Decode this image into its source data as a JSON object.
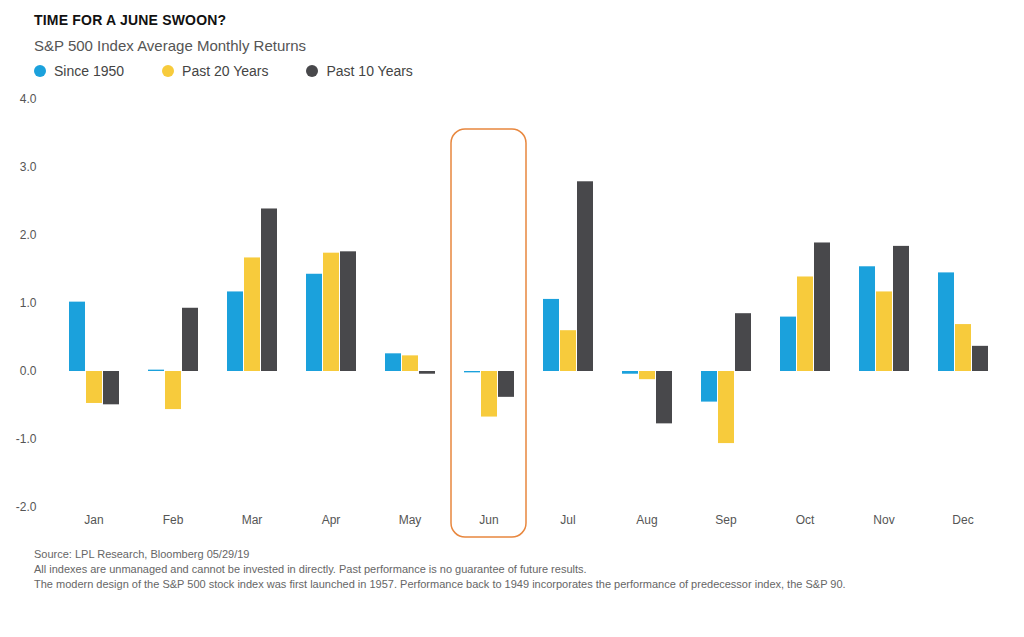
{
  "chart_data": {
    "type": "bar",
    "title": "TIME FOR A JUNE SWOON?",
    "subtitle": "S&P 500 Index Average Monthly Returns",
    "categories": [
      "Jan",
      "Feb",
      "Mar",
      "Apr",
      "May",
      "Jun",
      "Jul",
      "Aug",
      "Sep",
      "Oct",
      "Nov",
      "Dec"
    ],
    "series": [
      {
        "name": "Since 1950",
        "color": "#1ba1dc",
        "values": [
          1.02,
          0.02,
          1.17,
          1.43,
          0.26,
          -0.02,
          1.06,
          -0.04,
          -0.45,
          0.8,
          1.54,
          1.45
        ]
      },
      {
        "name": "Past 20 Years",
        "color": "#f7cb3c",
        "values": [
          -0.47,
          -0.56,
          1.67,
          1.74,
          0.23,
          -0.67,
          0.6,
          -0.12,
          -1.06,
          1.39,
          1.17,
          0.69
        ]
      },
      {
        "name": "Past 10 Years",
        "color": "#48484b",
        "values": [
          -0.49,
          0.93,
          2.39,
          1.76,
          -0.04,
          -0.38,
          2.79,
          -0.77,
          0.85,
          1.89,
          1.84,
          0.37
        ]
      }
    ],
    "ylim": [
      -2,
      4
    ],
    "yticks": [
      {
        "value": -2,
        "label": "-2.0"
      },
      {
        "value": -1,
        "label": "-1.0"
      },
      {
        "value": 0,
        "label": "0.0"
      },
      {
        "value": 1,
        "label": "1.0"
      },
      {
        "value": 2,
        "label": "2.0"
      },
      {
        "value": 3,
        "label": "3.0"
      },
      {
        "value": 4,
        "label": "4.0"
      }
    ],
    "grid": false,
    "legend": "top-left",
    "caption": [
      "Source: LPL Research, Bloomberg 05/29/19",
      "All indexes are unmanaged and cannot be invested in directly. Past performance is no guarantee of future results.",
      "The modern design of the S&P 500 stock index was first launched in 1957. Performance back to 1949 incorporates the performance of predecessor index, the S&P 90."
    ]
  }
}
